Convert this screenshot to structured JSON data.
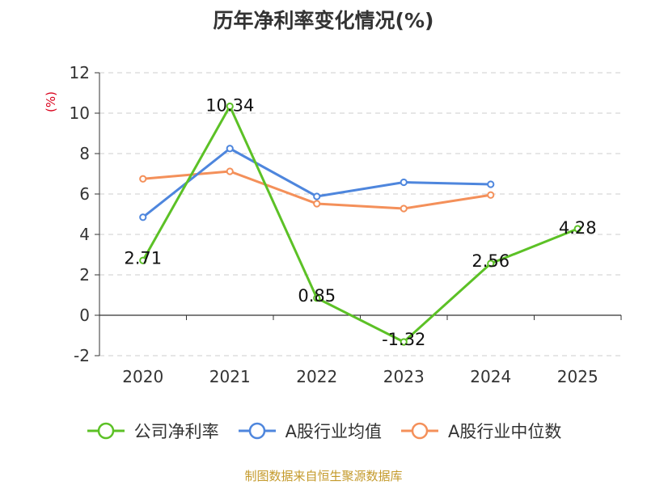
{
  "chart_data": {
    "type": "line",
    "title": "历年净利率变化情况(%)",
    "ylabel": "(%)",
    "xlabel": "",
    "categories": [
      "2020",
      "2021",
      "2022",
      "2023",
      "2024",
      "2025"
    ],
    "ylim": [
      -2,
      12
    ],
    "yticks": [
      "-2",
      "0",
      "2",
      "4",
      "6",
      "8",
      "10",
      "12"
    ],
    "grid": true,
    "legend_position": "bottom",
    "series": [
      {
        "name": "公司净利率",
        "color": "#5cc126",
        "values": [
          2.71,
          10.34,
          0.85,
          -1.32,
          2.56,
          4.28
        ],
        "labels": [
          "2.71",
          "10.34",
          "0.85",
          "-1.32",
          "2.56",
          "4.28"
        ]
      },
      {
        "name": "A股行业均值",
        "color": "#4e86dd",
        "values": [
          4.85,
          8.25,
          5.88,
          6.58,
          6.48,
          null
        ]
      },
      {
        "name": "A股行业中位数",
        "color": "#f4905a",
        "values": [
          6.75,
          7.12,
          5.52,
          5.28,
          5.95,
          null
        ]
      }
    ]
  },
  "footer": {
    "source": "制图数据来自恒生聚源数据库"
  }
}
